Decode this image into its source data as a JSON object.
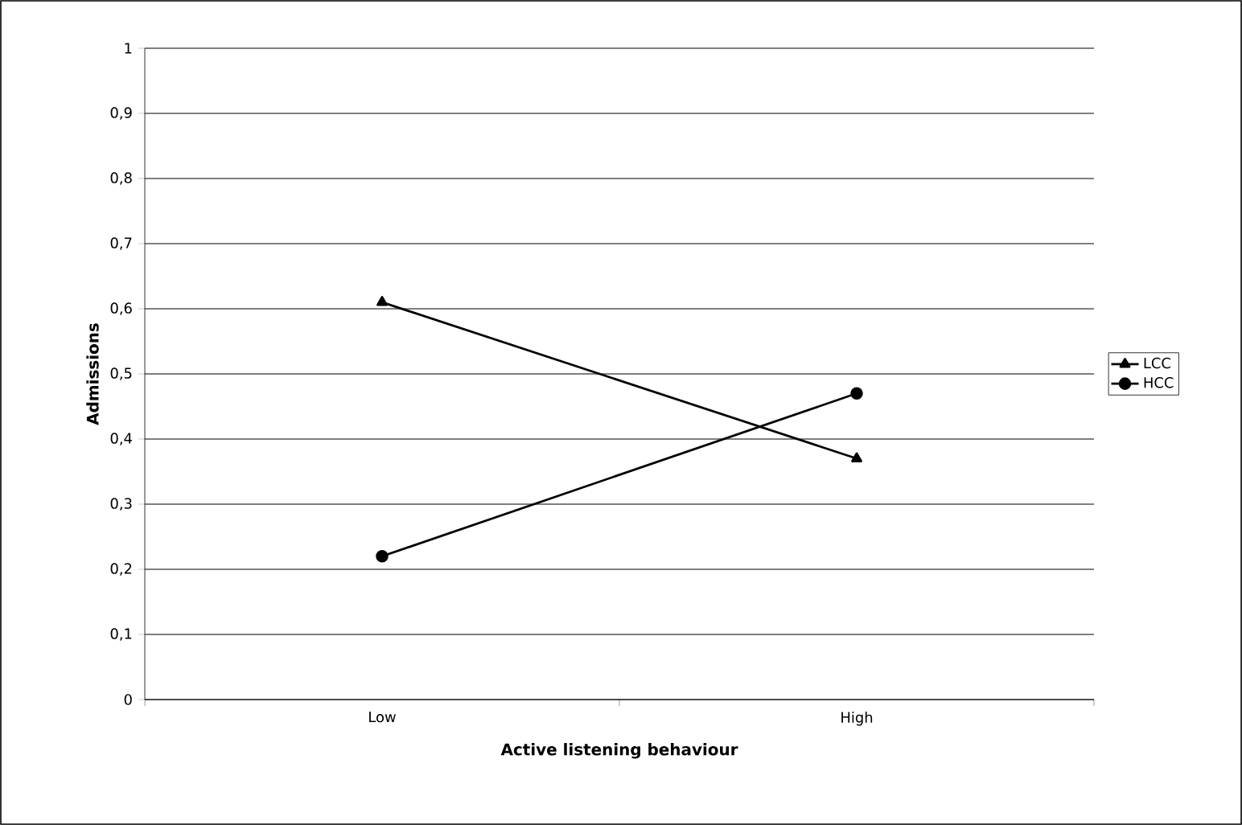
{
  "chart_data": {
    "type": "line",
    "xlabel": "Active listening behaviour",
    "ylabel": "Admissions",
    "categories": [
      "Low",
      "High"
    ],
    "series": [
      {
        "name": "LCC",
        "color": "#000000",
        "values": [
          0.61,
          0.37
        ],
        "marker": "triangle"
      },
      {
        "name": "HCC",
        "color": "#000000",
        "values": [
          0.22,
          0.47
        ],
        "marker": "circle"
      }
    ],
    "ylim": [
      0,
      1
    ],
    "yticks": [
      0,
      {
        "value": 0.1,
        "label": "0,1"
      },
      {
        "value": 0.2,
        "label": "0,2"
      },
      {
        "value": 0.3,
        "label": "0,3"
      },
      {
        "value": 0.4,
        "label": "0,4"
      },
      {
        "value": 0.5,
        "label": "0,5"
      },
      {
        "value": 0.6,
        "label": "0,6"
      },
      {
        "value": 0.7,
        "label": "0,7"
      },
      {
        "value": 0.8,
        "label": "0,8"
      },
      {
        "value": 0.9,
        "label": "0,9"
      },
      1
    ],
    "grid": "y",
    "legend": "right",
    "line_style": "solid"
  }
}
